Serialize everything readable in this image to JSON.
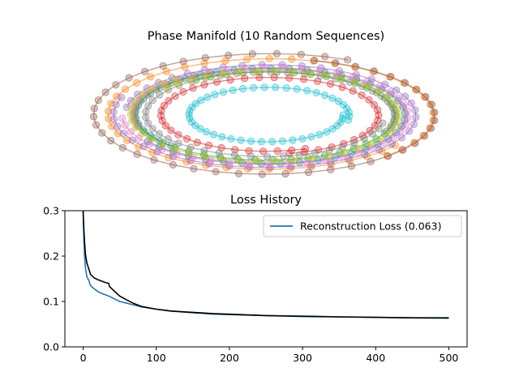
{
  "chart_data": [
    {
      "type": "scatter",
      "title": "Phase Manifold (10 Random Sequences)",
      "xlabel": "",
      "ylabel": "",
      "axes_visible": false,
      "description_of_shape": "nested elliptical spirals, points with connecting lines",
      "xlim": [
        -1.05,
        1.05
      ],
      "ylim": [
        -1.05,
        1.05
      ],
      "series": [
        {
          "color": "#1f77b4",
          "radius": 0.78,
          "phase": 2.4
        },
        {
          "color": "#ff7f0e",
          "radius": 0.92,
          "phase": 0.6
        },
        {
          "color": "#2ca02c",
          "radius": 0.74,
          "phase": 4.1
        },
        {
          "color": "#d62728",
          "radius": 0.62,
          "phase": 1.2
        },
        {
          "color": "#9467bd",
          "radius": 0.85,
          "phase": 3.3
        },
        {
          "color": "#8c564b",
          "radius": 0.98,
          "phase": 5.0
        },
        {
          "color": "#e377c2",
          "radius": 0.8,
          "phase": 2.9
        },
        {
          "color": "#7f7f7f",
          "radius": 0.7,
          "phase": 0.2
        },
        {
          "color": "#bcbd22",
          "radius": 0.76,
          "phase": 3.8
        },
        {
          "color": "#17becf",
          "radius": 0.45,
          "phase": 0.0
        }
      ]
    },
    {
      "type": "line",
      "title": "Loss History",
      "xlabel": "",
      "ylabel": "",
      "xlim": [
        -25,
        525
      ],
      "ylim": [
        0.0,
        0.3
      ],
      "xticks": [
        "0",
        "100",
        "200",
        "300",
        "400",
        "500"
      ],
      "xtick_values": [
        0,
        100,
        200,
        300,
        400,
        500
      ],
      "yticks": [
        "0.0",
        "0.1",
        "0.2",
        "0.3"
      ],
      "ytick_values": [
        0.0,
        0.1,
        0.2,
        0.3
      ],
      "legend": {
        "position": "top-right",
        "entries": [
          "Reconstruction Loss (0.063)"
        ]
      },
      "series": [
        {
          "name": "Reconstruction Loss (0.063)",
          "color": "#1f77b4",
          "x": [
            0,
            1,
            2,
            3,
            5,
            8,
            10,
            15,
            20,
            25,
            30,
            35,
            40,
            50,
            60,
            70,
            80,
            100,
            120,
            150,
            180,
            200,
            250,
            300,
            350,
            400,
            450,
            500
          ],
          "y": [
            0.3,
            0.24,
            0.2,
            0.175,
            0.155,
            0.145,
            0.135,
            0.128,
            0.122,
            0.118,
            0.115,
            0.112,
            0.108,
            0.1,
            0.096,
            0.092,
            0.088,
            0.083,
            0.079,
            0.075,
            0.072,
            0.071,
            0.069,
            0.068,
            0.066,
            0.065,
            0.064,
            0.063
          ]
        },
        {
          "name": "",
          "color": "#000000",
          "x": [
            0,
            1,
            2,
            3,
            5,
            8,
            10,
            15,
            20,
            25,
            30,
            35,
            36,
            40,
            50,
            60,
            70,
            80,
            100,
            120,
            150,
            180,
            200,
            250,
            300,
            350,
            400,
            450,
            500
          ],
          "y": [
            0.3,
            0.26,
            0.23,
            0.205,
            0.185,
            0.17,
            0.16,
            0.152,
            0.148,
            0.145,
            0.142,
            0.14,
            0.133,
            0.127,
            0.112,
            0.103,
            0.095,
            0.089,
            0.083,
            0.079,
            0.076,
            0.073,
            0.072,
            0.069,
            0.067,
            0.066,
            0.065,
            0.064,
            0.064
          ]
        }
      ]
    }
  ]
}
